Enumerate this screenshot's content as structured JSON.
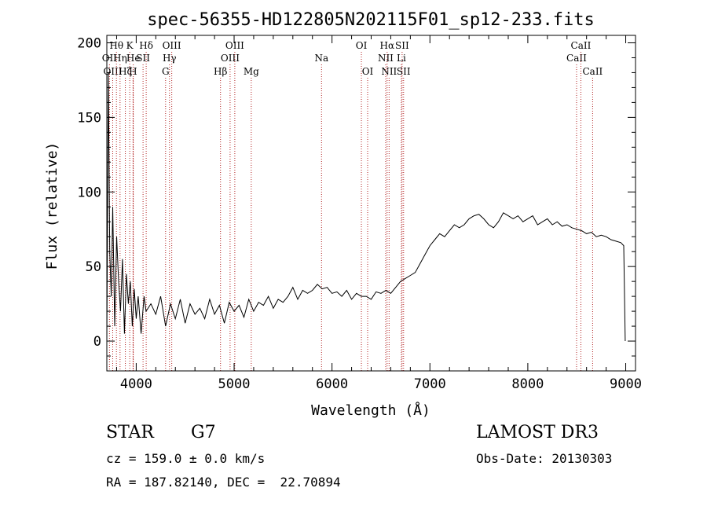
{
  "chart_data": {
    "type": "line",
    "title": "spec-56355-HD122805N202115F01_sp12-233.fits",
    "xlabel": "Wavelength (Å)",
    "ylabel": "Flux (relative)",
    "xlim": [
      3700,
      9100
    ],
    "ylim": [
      -20,
      205
    ],
    "xticks": [
      4000,
      5000,
      6000,
      7000,
      8000,
      9000
    ],
    "yticks": [
      0,
      50,
      100,
      150,
      200
    ],
    "grid": false,
    "series": [
      {
        "x": [
          3700,
          3715,
          3730,
          3745,
          3760,
          3780,
          3800,
          3820,
          3840,
          3860,
          3880,
          3900,
          3920,
          3940,
          3960,
          3980,
          4000,
          4020,
          4050,
          4080,
          4100,
          4150,
          4200,
          4250,
          4300,
          4350,
          4400,
          4450,
          4500,
          4550,
          4600,
          4650,
          4700,
          4750,
          4800,
          4850,
          4900,
          4950,
          5000,
          5050,
          5100,
          5150,
          5200,
          5250,
          5300,
          5350,
          5400,
          5450,
          5500,
          5550,
          5600,
          5650,
          5700,
          5750,
          5800,
          5850,
          5900,
          5950,
          6000,
          6050,
          6100,
          6150,
          6200,
          6250,
          6300,
          6350,
          6400,
          6450,
          6500,
          6550,
          6600,
          6650,
          6700,
          6750,
          6800,
          6850,
          6900,
          6950,
          7000,
          7050,
          7100,
          7150,
          7200,
          7250,
          7300,
          7350,
          7400,
          7450,
          7500,
          7550,
          7600,
          7650,
          7700,
          7750,
          7800,
          7850,
          7900,
          7950,
          8000,
          8050,
          8100,
          8150,
          8200,
          8250,
          8300,
          8350,
          8400,
          8450,
          8500,
          8550,
          8600,
          8650,
          8700,
          8750,
          8800,
          8850,
          8900,
          8950,
          8980,
          8995
        ],
        "y": [
          0,
          180,
          60,
          30,
          90,
          10,
          70,
          40,
          20,
          55,
          5,
          45,
          25,
          40,
          10,
          35,
          15,
          30,
          5,
          30,
          20,
          25,
          18,
          30,
          10,
          25,
          15,
          28,
          12,
          25,
          18,
          22,
          15,
          28,
          18,
          24,
          12,
          26,
          20,
          24,
          16,
          28,
          20,
          26,
          24,
          30,
          22,
          28,
          26,
          30,
          36,
          28,
          34,
          32,
          34,
          38,
          35,
          36,
          32,
          33,
          30,
          34,
          28,
          32,
          30,
          30,
          28,
          33,
          32,
          34,
          32,
          36,
          40,
          42,
          44,
          46,
          52,
          58,
          64,
          68,
          72,
          70,
          74,
          78,
          76,
          78,
          82,
          84,
          85,
          82,
          78,
          76,
          80,
          86,
          84,
          82,
          84,
          80,
          82,
          84,
          78,
          80,
          82,
          78,
          80,
          77,
          78,
          76,
          75,
          74,
          72,
          73,
          70,
          71,
          70,
          68,
          67,
          66,
          64,
          0
        ]
      }
    ],
    "lines": [
      {
        "label": "OII",
        "x": 3727,
        "row": 1
      },
      {
        "label": "OIII",
        "x": 3760,
        "row": 2
      },
      {
        "label": "Hθ",
        "x": 3798,
        "row": 0
      },
      {
        "label": "Hη",
        "x": 3835,
        "row": 1
      },
      {
        "label": "Hζ",
        "x": 3889,
        "row": 2
      },
      {
        "label": "K",
        "x": 3934,
        "row": 0
      },
      {
        "label": "H",
        "x": 3968,
        "row": 2
      },
      {
        "label": "He",
        "x": 3970,
        "row": 1
      },
      {
        "label": "SII",
        "x": 4070,
        "row": 1
      },
      {
        "label": "Hδ",
        "x": 4102,
        "row": 0
      },
      {
        "label": "G",
        "x": 4300,
        "row": 2
      },
      {
        "label": "Hγ",
        "x": 4340,
        "row": 1
      },
      {
        "label": "OIII",
        "x": 4363,
        "row": 0
      },
      {
        "label": "Hβ",
        "x": 4861,
        "row": 2
      },
      {
        "label": "OIII",
        "x": 4959,
        "row": 1
      },
      {
        "label": "OIII",
        "x": 5007,
        "row": 0
      },
      {
        "label": "Mg",
        "x": 5175,
        "row": 2
      },
      {
        "label": "Na",
        "x": 5893,
        "row": 1
      },
      {
        "label": "OI",
        "x": 6300,
        "row": 0
      },
      {
        "label": "OI",
        "x": 6364,
        "row": 2
      },
      {
        "label": "NII",
        "x": 6548,
        "row": 1
      },
      {
        "label": "Hα",
        "x": 6563,
        "row": 0
      },
      {
        "label": "NII",
        "x": 6583,
        "row": 2
      },
      {
        "label": "Li",
        "x": 6708,
        "row": 1
      },
      {
        "label": "SII",
        "x": 6716,
        "row": 0
      },
      {
        "label": "SII",
        "x": 6731,
        "row": 2
      },
      {
        "label": "CaII",
        "x": 8498,
        "row": 1
      },
      {
        "label": "CaII",
        "x": 8542,
        "row": 0
      },
      {
        "label": "CaII",
        "x": 8662,
        "row": 2
      }
    ]
  },
  "info": {
    "object_type": "STAR",
    "subclass": "G7",
    "survey": "LAMOST DR3",
    "cz": "cz = 159.0 ± 0.0 km/s",
    "obs_date": "Obs-Date: 20130303",
    "coords": "RA = 187.82140, DEC =  22.70894"
  }
}
